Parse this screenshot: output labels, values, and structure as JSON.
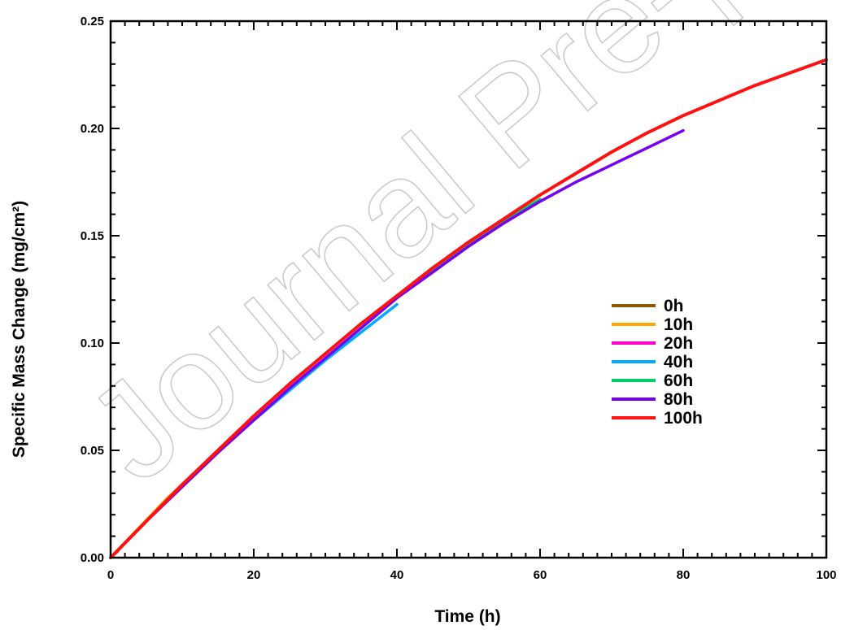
{
  "watermark": "Journal Pre-proof",
  "chart_data": {
    "type": "line",
    "xlabel": "Time (h)",
    "ylabel": "Specific Mass Change (mg/cm²)",
    "xlim": [
      0,
      100
    ],
    "ylim": [
      0,
      0.25
    ],
    "xticks": [
      0,
      20,
      40,
      60,
      80,
      100
    ],
    "yticks": [
      0,
      0.05,
      0.1,
      0.15,
      0.2,
      0.25
    ],
    "xtick_labels": [
      "0",
      "20",
      "40",
      "60",
      "80",
      "100"
    ],
    "ytick_labels": [
      "0.00",
      "0.05",
      "0.10",
      "0.15",
      "0.20",
      "0.25"
    ],
    "grid": false,
    "legend_position": "right",
    "series": [
      {
        "name": "0h",
        "color": "#8B5A00",
        "x": [
          0,
          1
        ],
        "y": [
          0,
          0.003
        ]
      },
      {
        "name": "10h",
        "color": "#FFAA00",
        "x": [
          0,
          2,
          4,
          6,
          8,
          10
        ],
        "y": [
          0,
          0.007,
          0.014,
          0.021,
          0.028,
          0.034
        ]
      },
      {
        "name": "20h",
        "color": "#FF00CC",
        "x": [
          0,
          5,
          10,
          15,
          20
        ],
        "y": [
          0,
          0.017,
          0.034,
          0.05,
          0.066
        ]
      },
      {
        "name": "40h",
        "color": "#00AAFF",
        "x": [
          0,
          5,
          10,
          15,
          20,
          25,
          30,
          35,
          40
        ],
        "y": [
          0,
          0.017,
          0.033,
          0.049,
          0.064,
          0.078,
          0.092,
          0.105,
          0.118
        ]
      },
      {
        "name": "60h",
        "color": "#00CC66",
        "x": [
          0,
          5,
          10,
          15,
          20,
          25,
          30,
          35,
          40,
          45,
          50,
          55,
          60
        ],
        "y": [
          0,
          0.017,
          0.034,
          0.05,
          0.066,
          0.081,
          0.095,
          0.109,
          0.122,
          0.134,
          0.146,
          0.157,
          0.167
        ]
      },
      {
        "name": "80h",
        "color": "#7700EE",
        "x": [
          0,
          5,
          10,
          15,
          20,
          25,
          30,
          35,
          40,
          45,
          50,
          55,
          60,
          65,
          70,
          75,
          80
        ],
        "y": [
          0,
          0.017,
          0.033,
          0.049,
          0.064,
          0.079,
          0.093,
          0.107,
          0.121,
          0.133,
          0.145,
          0.156,
          0.166,
          0.175,
          0.183,
          0.191,
          0.199
        ]
      },
      {
        "name": "100h",
        "color": "#FF1111",
        "x": [
          0,
          5,
          10,
          15,
          20,
          25,
          30,
          35,
          40,
          45,
          50,
          55,
          60,
          65,
          70,
          75,
          80,
          85,
          90,
          95,
          100
        ],
        "y": [
          0,
          0.017,
          0.034,
          0.05,
          0.066,
          0.081,
          0.095,
          0.109,
          0.122,
          0.135,
          0.147,
          0.158,
          0.169,
          0.179,
          0.189,
          0.198,
          0.206,
          0.213,
          0.22,
          0.226,
          0.232
        ]
      }
    ]
  }
}
